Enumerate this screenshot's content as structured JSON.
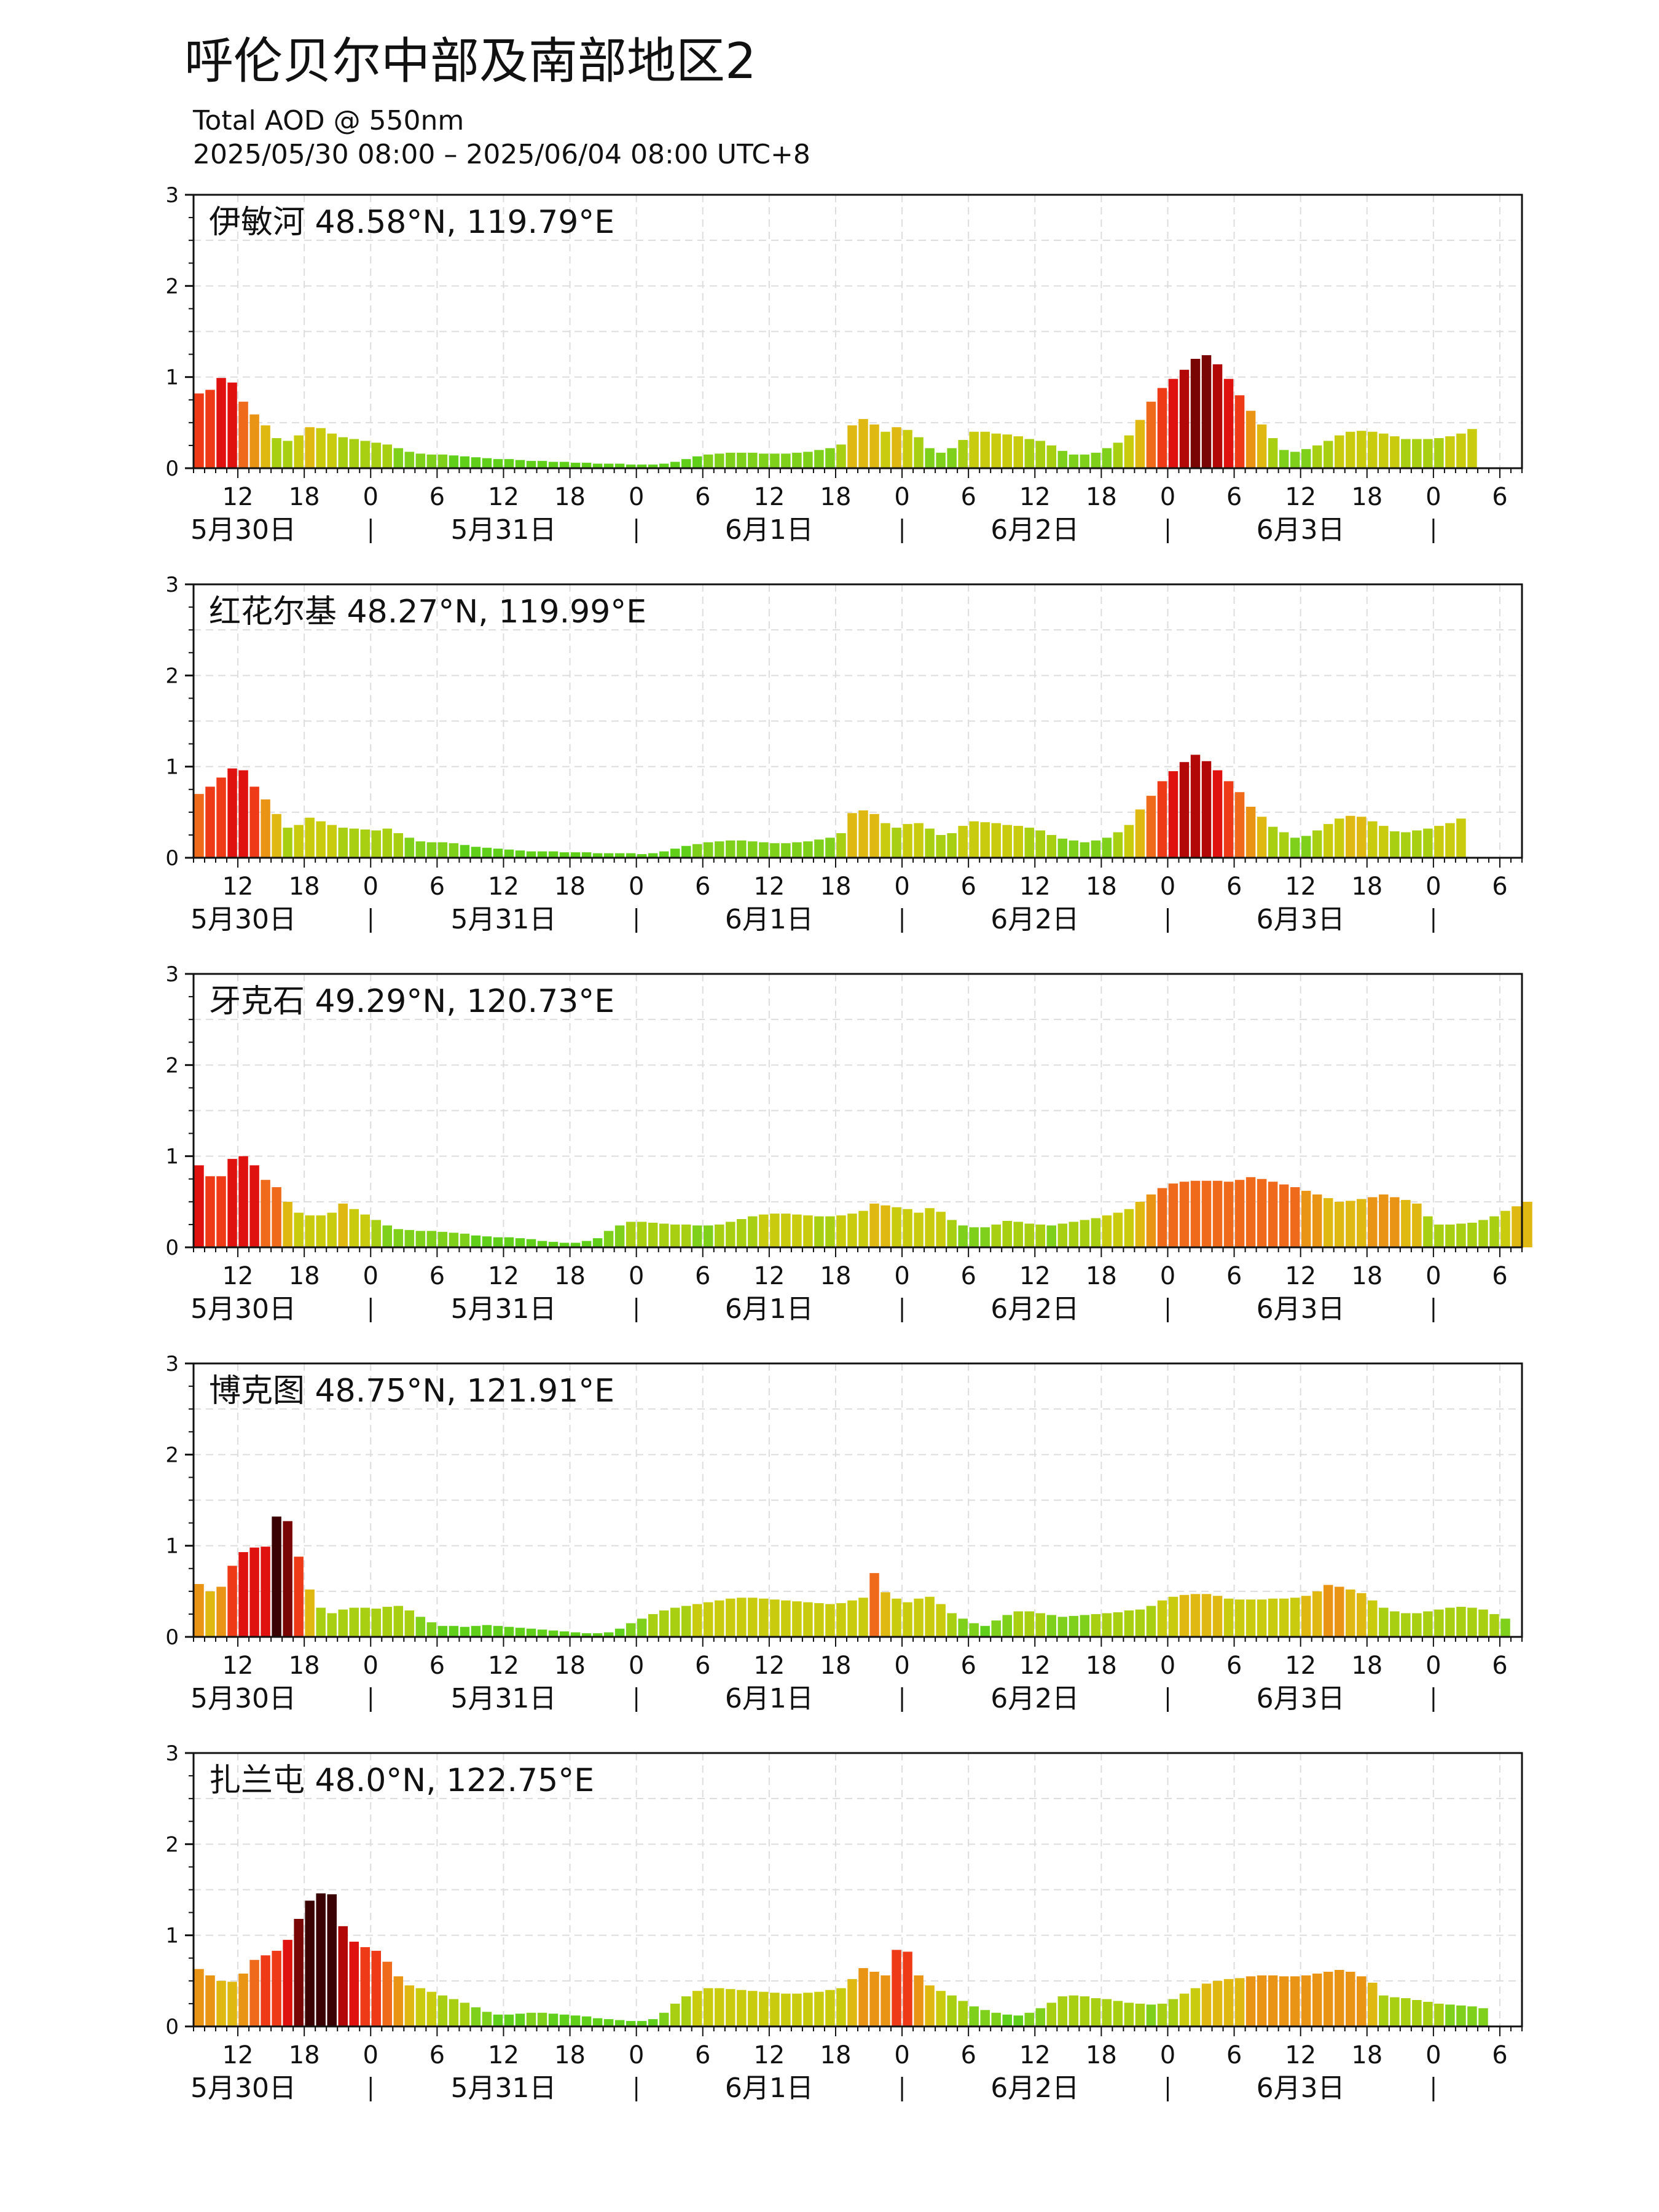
{
  "header": {
    "title": "呼伦贝尔中部及南部地区2",
    "subtitle": "Total AOD @ 550nm",
    "time_range": "2025/05/30 08:00 – 2025/06/04 08:00 UTC+8"
  },
  "axes": {
    "hour_ticks": [
      "12",
      "18",
      "0",
      "6",
      "12",
      "18",
      "0",
      "6",
      "12",
      "18",
      "0",
      "6",
      "12",
      "18",
      "0",
      "6",
      "12",
      "18",
      "0",
      "6"
    ],
    "day_labels": [
      "5月30日",
      "5月31日",
      "6月1日",
      "6月2日",
      "6月3日"
    ],
    "y_ticks": [
      "0",
      "1",
      "2",
      "3"
    ]
  },
  "chart_data": [
    {
      "type": "bar",
      "station": "伊敏河 48.58°N, 119.79°E",
      "ylim": [
        0,
        3
      ],
      "x_start_hour_utc8": 8,
      "interval_hours": 1,
      "values": [
        0.82,
        0.86,
        0.99,
        0.94,
        0.73,
        0.59,
        0.47,
        0.33,
        0.3,
        0.36,
        0.45,
        0.44,
        0.38,
        0.34,
        0.32,
        0.3,
        0.28,
        0.26,
        0.22,
        0.18,
        0.16,
        0.15,
        0.15,
        0.14,
        0.13,
        0.12,
        0.11,
        0.1,
        0.1,
        0.09,
        0.08,
        0.08,
        0.07,
        0.07,
        0.06,
        0.06,
        0.05,
        0.05,
        0.05,
        0.04,
        0.04,
        0.04,
        0.05,
        0.07,
        0.1,
        0.13,
        0.15,
        0.16,
        0.17,
        0.17,
        0.17,
        0.16,
        0.16,
        0.16,
        0.17,
        0.18,
        0.2,
        0.22,
        0.26,
        0.47,
        0.54,
        0.48,
        0.4,
        0.45,
        0.42,
        0.34,
        0.22,
        0.17,
        0.22,
        0.31,
        0.4,
        0.4,
        0.38,
        0.37,
        0.35,
        0.32,
        0.3,
        0.25,
        0.19,
        0.15,
        0.15,
        0.17,
        0.22,
        0.28,
        0.36,
        0.53,
        0.73,
        0.88,
        0.98,
        1.08,
        1.2,
        1.24,
        1.14,
        0.98,
        0.8,
        0.63,
        0.48,
        0.33,
        0.2,
        0.18,
        0.21,
        0.25,
        0.3,
        0.36,
        0.4,
        0.41,
        0.4,
        0.38,
        0.35,
        0.32,
        0.32,
        0.32,
        0.33,
        0.35,
        0.38,
        0.43
      ]
    },
    {
      "type": "bar",
      "station": "红花尔基 48.27°N, 119.99°E",
      "ylim": [
        0,
        3
      ],
      "x_start_hour_utc8": 8,
      "interval_hours": 1,
      "values": [
        0.7,
        0.78,
        0.88,
        0.98,
        0.96,
        0.78,
        0.64,
        0.48,
        0.33,
        0.36,
        0.44,
        0.4,
        0.36,
        0.33,
        0.32,
        0.31,
        0.3,
        0.32,
        0.27,
        0.22,
        0.18,
        0.17,
        0.17,
        0.16,
        0.14,
        0.12,
        0.11,
        0.1,
        0.09,
        0.08,
        0.07,
        0.07,
        0.07,
        0.06,
        0.06,
        0.06,
        0.05,
        0.05,
        0.05,
        0.05,
        0.04,
        0.05,
        0.07,
        0.1,
        0.13,
        0.15,
        0.17,
        0.18,
        0.19,
        0.19,
        0.18,
        0.17,
        0.16,
        0.16,
        0.17,
        0.18,
        0.2,
        0.22,
        0.27,
        0.49,
        0.52,
        0.48,
        0.38,
        0.33,
        0.37,
        0.38,
        0.32,
        0.25,
        0.27,
        0.35,
        0.4,
        0.39,
        0.38,
        0.36,
        0.35,
        0.33,
        0.3,
        0.25,
        0.21,
        0.19,
        0.17,
        0.19,
        0.22,
        0.28,
        0.36,
        0.53,
        0.68,
        0.84,
        0.95,
        1.05,
        1.13,
        1.06,
        0.96,
        0.84,
        0.72,
        0.56,
        0.45,
        0.34,
        0.28,
        0.22,
        0.24,
        0.3,
        0.37,
        0.43,
        0.46,
        0.45,
        0.4,
        0.35,
        0.29,
        0.28,
        0.3,
        0.32,
        0.35,
        0.38,
        0.43
      ]
    },
    {
      "type": "bar",
      "station": "牙克石 49.29°N, 120.73°E",
      "ylim": [
        0,
        3
      ],
      "x_start_hour_utc8": 8,
      "interval_hours": 1,
      "values": [
        0.9,
        0.78,
        0.78,
        0.97,
        1.0,
        0.9,
        0.74,
        0.66,
        0.5,
        0.38,
        0.35,
        0.35,
        0.38,
        0.48,
        0.42,
        0.36,
        0.3,
        0.24,
        0.2,
        0.19,
        0.18,
        0.18,
        0.17,
        0.16,
        0.15,
        0.13,
        0.12,
        0.11,
        0.11,
        0.1,
        0.09,
        0.07,
        0.06,
        0.05,
        0.05,
        0.07,
        0.1,
        0.18,
        0.24,
        0.28,
        0.28,
        0.27,
        0.26,
        0.25,
        0.25,
        0.24,
        0.24,
        0.25,
        0.28,
        0.31,
        0.34,
        0.36,
        0.37,
        0.37,
        0.36,
        0.35,
        0.34,
        0.34,
        0.35,
        0.37,
        0.4,
        0.48,
        0.46,
        0.44,
        0.42,
        0.38,
        0.43,
        0.39,
        0.3,
        0.24,
        0.22,
        0.22,
        0.25,
        0.29,
        0.28,
        0.26,
        0.25,
        0.24,
        0.26,
        0.28,
        0.3,
        0.32,
        0.35,
        0.38,
        0.42,
        0.5,
        0.58,
        0.65,
        0.7,
        0.72,
        0.73,
        0.73,
        0.73,
        0.72,
        0.74,
        0.77,
        0.75,
        0.72,
        0.69,
        0.66,
        0.62,
        0.58,
        0.54,
        0.5,
        0.51,
        0.53,
        0.55,
        0.58,
        0.55,
        0.52,
        0.48,
        0.34,
        0.25,
        0.25,
        0.26,
        0.27,
        0.3,
        0.34,
        0.4,
        0.45,
        0.5
      ]
    },
    {
      "type": "bar",
      "station": "博克图 48.75°N, 121.91°E",
      "ylim": [
        0,
        3
      ],
      "x_start_hour_utc8": 8,
      "interval_hours": 1,
      "values": [
        0.58,
        0.5,
        0.55,
        0.78,
        0.93,
        0.98,
        0.99,
        1.32,
        1.27,
        0.88,
        0.52,
        0.32,
        0.26,
        0.3,
        0.32,
        0.32,
        0.31,
        0.33,
        0.34,
        0.29,
        0.22,
        0.16,
        0.12,
        0.12,
        0.11,
        0.12,
        0.13,
        0.12,
        0.11,
        0.1,
        0.09,
        0.08,
        0.07,
        0.06,
        0.05,
        0.04,
        0.04,
        0.05,
        0.09,
        0.15,
        0.2,
        0.25,
        0.29,
        0.32,
        0.34,
        0.36,
        0.38,
        0.4,
        0.42,
        0.43,
        0.43,
        0.42,
        0.41,
        0.4,
        0.39,
        0.38,
        0.37,
        0.36,
        0.37,
        0.4,
        0.43,
        0.7,
        0.49,
        0.42,
        0.38,
        0.42,
        0.44,
        0.36,
        0.26,
        0.2,
        0.15,
        0.12,
        0.18,
        0.24,
        0.28,
        0.28,
        0.26,
        0.24,
        0.22,
        0.23,
        0.24,
        0.25,
        0.26,
        0.27,
        0.29,
        0.3,
        0.34,
        0.4,
        0.44,
        0.46,
        0.47,
        0.47,
        0.45,
        0.42,
        0.41,
        0.41,
        0.41,
        0.42,
        0.42,
        0.43,
        0.45,
        0.5,
        0.57,
        0.55,
        0.52,
        0.48,
        0.4,
        0.32,
        0.28,
        0.26,
        0.26,
        0.28,
        0.3,
        0.32,
        0.33,
        0.32,
        0.3,
        0.25,
        0.2
      ]
    },
    {
      "type": "bar",
      "station": "扎兰屯 48.0°N, 122.75°E",
      "ylim": [
        0,
        3
      ],
      "x_start_hour_utc8": 8,
      "interval_hours": 1,
      "values": [
        0.63,
        0.56,
        0.5,
        0.49,
        0.58,
        0.73,
        0.78,
        0.83,
        0.95,
        1.18,
        1.38,
        1.46,
        1.45,
        1.1,
        0.93,
        0.87,
        0.83,
        0.71,
        0.55,
        0.45,
        0.42,
        0.38,
        0.34,
        0.3,
        0.26,
        0.21,
        0.16,
        0.13,
        0.13,
        0.14,
        0.15,
        0.15,
        0.14,
        0.13,
        0.12,
        0.11,
        0.09,
        0.08,
        0.07,
        0.06,
        0.06,
        0.08,
        0.15,
        0.25,
        0.33,
        0.39,
        0.42,
        0.42,
        0.41,
        0.4,
        0.39,
        0.38,
        0.37,
        0.36,
        0.36,
        0.37,
        0.38,
        0.4,
        0.42,
        0.52,
        0.64,
        0.6,
        0.56,
        0.84,
        0.82,
        0.56,
        0.45,
        0.39,
        0.34,
        0.28,
        0.22,
        0.18,
        0.15,
        0.13,
        0.12,
        0.15,
        0.2,
        0.26,
        0.33,
        0.34,
        0.33,
        0.31,
        0.3,
        0.28,
        0.26,
        0.25,
        0.24,
        0.25,
        0.3,
        0.36,
        0.42,
        0.47,
        0.5,
        0.52,
        0.53,
        0.55,
        0.56,
        0.56,
        0.55,
        0.55,
        0.56,
        0.58,
        0.6,
        0.62,
        0.6,
        0.55,
        0.48,
        0.34,
        0.32,
        0.31,
        0.29,
        0.27,
        0.25,
        0.24,
        0.23,
        0.22,
        0.2
      ]
    }
  ]
}
